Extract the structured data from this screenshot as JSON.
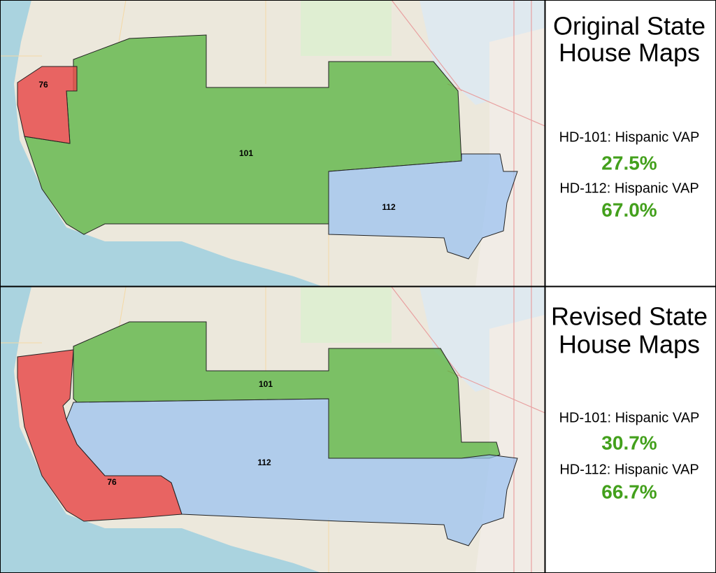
{
  "panels": [
    {
      "title_lines": [
        "Original State",
        "House Maps"
      ],
      "district_labels": {
        "d76": "76",
        "d101": "101",
        "d112": "112"
      },
      "stats": [
        {
          "label": "HD-101: Hispanic VAP",
          "value": "27.5%"
        },
        {
          "label": "HD-112: Hispanic VAP",
          "value": "67.0%"
        }
      ]
    },
    {
      "title_lines": [
        "Revised State",
        "House Maps"
      ],
      "district_labels": {
        "d76": "76",
        "d101": "101",
        "d112": "112"
      },
      "stats": [
        {
          "label": "HD-101: Hispanic VAP",
          "value": "30.7%"
        },
        {
          "label": "HD-112: Hispanic VAP",
          "value": "66.7%"
        }
      ]
    }
  ]
}
